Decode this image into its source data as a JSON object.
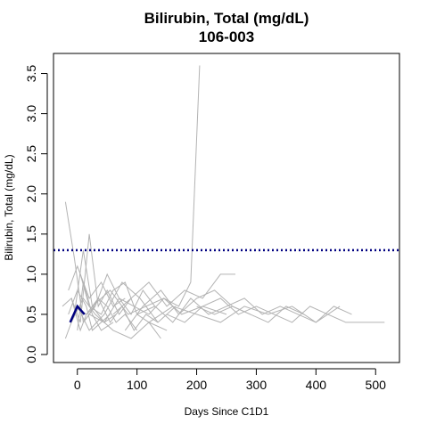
{
  "chart_data": {
    "type": "line",
    "title": "Bilirubin, Total (mg/dL)",
    "subtitle": "106-003",
    "xlabel": "Days Since C1D1",
    "ylabel": "Bilirubin, Total (mg/dL)",
    "xlim": [
      -40,
      540
    ],
    "ylim": [
      -0.1,
      3.75
    ],
    "xticks": [
      0,
      100,
      200,
      300,
      400,
      500
    ],
    "yticks": [
      0.0,
      0.5,
      1.0,
      1.5,
      2.0,
      2.5,
      3.0,
      3.5
    ],
    "xtick_labels": [
      "0",
      "100",
      "200",
      "300",
      "400",
      "500"
    ],
    "ytick_labels": [
      "0.0",
      "0.5",
      "1.0",
      "1.5",
      "2.0",
      "2.5",
      "3.0",
      "3.5"
    ],
    "grid": false,
    "reference_line": {
      "y": 1.3,
      "style": "dotted",
      "color": "#000080"
    },
    "colors": {
      "background_series": "#b3b3b3",
      "highlight_series": "#000080",
      "axis": "#000000"
    },
    "highlight_series": {
      "x": [
        -12,
        0,
        12
      ],
      "y": [
        0.4,
        0.6,
        0.5
      ]
    },
    "background_series": [
      {
        "x": [
          -20,
          -5,
          10,
          20,
          35,
          50,
          65,
          80,
          100
        ],
        "y": [
          1.9,
          1.2,
          0.4,
          0.5,
          0.7,
          0.6,
          0.4,
          0.5,
          0.3
        ]
      },
      {
        "x": [
          -25,
          -10,
          5,
          15,
          30
        ],
        "y": [
          0.6,
          0.7,
          0.3,
          0.5,
          0.6
        ]
      },
      {
        "x": [
          -15,
          0,
          15,
          25,
          40,
          55
        ],
        "y": [
          0.5,
          0.8,
          0.6,
          0.3,
          0.4,
          0.5
        ]
      },
      {
        "x": [
          -10,
          5,
          20,
          35,
          50,
          70,
          90
        ],
        "y": [
          0.7,
          0.4,
          1.5,
          0.6,
          0.8,
          0.5,
          0.7
        ]
      },
      {
        "x": [
          0,
          10,
          25,
          40,
          60
        ],
        "y": [
          0.3,
          0.9,
          0.5,
          0.3,
          0.4
        ]
      },
      {
        "x": [
          -20,
          -5,
          10,
          25,
          45,
          65
        ],
        "y": [
          0.2,
          0.5,
          1.3,
          0.6,
          0.4,
          0.5
        ]
      },
      {
        "x": [
          -5,
          15,
          35,
          55,
          75,
          95,
          115,
          135
        ],
        "y": [
          0.6,
          0.5,
          0.7,
          0.4,
          0.6,
          0.3,
          0.5,
          0.4
        ]
      },
      {
        "x": [
          5,
          20,
          40,
          60,
          80,
          100,
          120,
          140
        ],
        "y": [
          1.0,
          0.6,
          0.5,
          0.8,
          0.9,
          0.5,
          0.4,
          0.2
        ]
      },
      {
        "x": [
          -15,
          0,
          20,
          40,
          60,
          80
        ],
        "y": [
          0.8,
          1.1,
          0.7,
          0.9,
          0.6,
          0.7
        ]
      },
      {
        "x": [
          10,
          30,
          50,
          70,
          90,
          110,
          130
        ],
        "y": [
          0.4,
          0.6,
          1.0,
          0.7,
          0.5,
          0.8,
          0.6
        ]
      },
      {
        "x": [
          20,
          45,
          70,
          95,
          120,
          145,
          170,
          190,
          205
        ],
        "y": [
          0.5,
          0.4,
          0.7,
          0.6,
          0.5,
          0.7,
          0.6,
          0.9,
          3.6
        ]
      },
      {
        "x": [
          60,
          90,
          120,
          150,
          180,
          210,
          240,
          265
        ],
        "y": [
          0.5,
          0.7,
          0.9,
          0.6,
          0.8,
          0.7,
          1.0,
          1.0
        ]
      },
      {
        "x": [
          100,
          130,
          160,
          190,
          220,
          250,
          280,
          310,
          340,
          370,
          400,
          430,
          460
        ],
        "y": [
          0.5,
          0.6,
          0.4,
          0.7,
          0.5,
          0.6,
          0.7,
          0.5,
          0.6,
          0.5,
          0.4,
          0.6,
          0.5
        ]
      },
      {
        "x": [
          150,
          180,
          210,
          240,
          270,
          300,
          330,
          360,
          390,
          420,
          450,
          480,
          515
        ],
        "y": [
          0.5,
          0.4,
          0.6,
          0.7,
          0.5,
          0.6,
          0.5,
          0.4,
          0.6,
          0.5,
          0.4,
          0.4,
          0.4
        ]
      },
      {
        "x": [
          120,
          160,
          200,
          240,
          280,
          320,
          360,
          400,
          440
        ],
        "y": [
          0.4,
          0.6,
          0.5,
          0.4,
          0.6,
          0.5,
          0.6,
          0.4,
          0.6
        ]
      },
      {
        "x": [
          80,
          110,
          140,
          170,
          200,
          230,
          260,
          290
        ],
        "y": [
          0.3,
          0.6,
          0.8,
          0.5,
          0.7,
          0.8,
          0.6,
          0.5
        ]
      },
      {
        "x": [
          0,
          20,
          45,
          75,
          105,
          135,
          165
        ],
        "y": [
          0.6,
          0.3,
          0.5,
          0.9,
          0.7,
          0.4,
          0.6
        ]
      },
      {
        "x": [
          -10,
          10,
          30,
          60,
          90,
          120,
          150
        ],
        "y": [
          0.4,
          0.7,
          0.5,
          0.3,
          0.2,
          0.4,
          0.3
        ]
      },
      {
        "x": [
          200,
          230,
          260,
          290,
          320,
          350,
          380
        ],
        "y": [
          0.6,
          0.5,
          0.6,
          0.5,
          0.4,
          0.6,
          0.5
        ]
      },
      {
        "x": [
          25,
          55,
          85,
          115,
          145,
          175,
          210,
          250
        ],
        "y": [
          0.6,
          0.8,
          0.5,
          0.6,
          0.7,
          0.5,
          0.6,
          0.5
        ]
      }
    ]
  }
}
